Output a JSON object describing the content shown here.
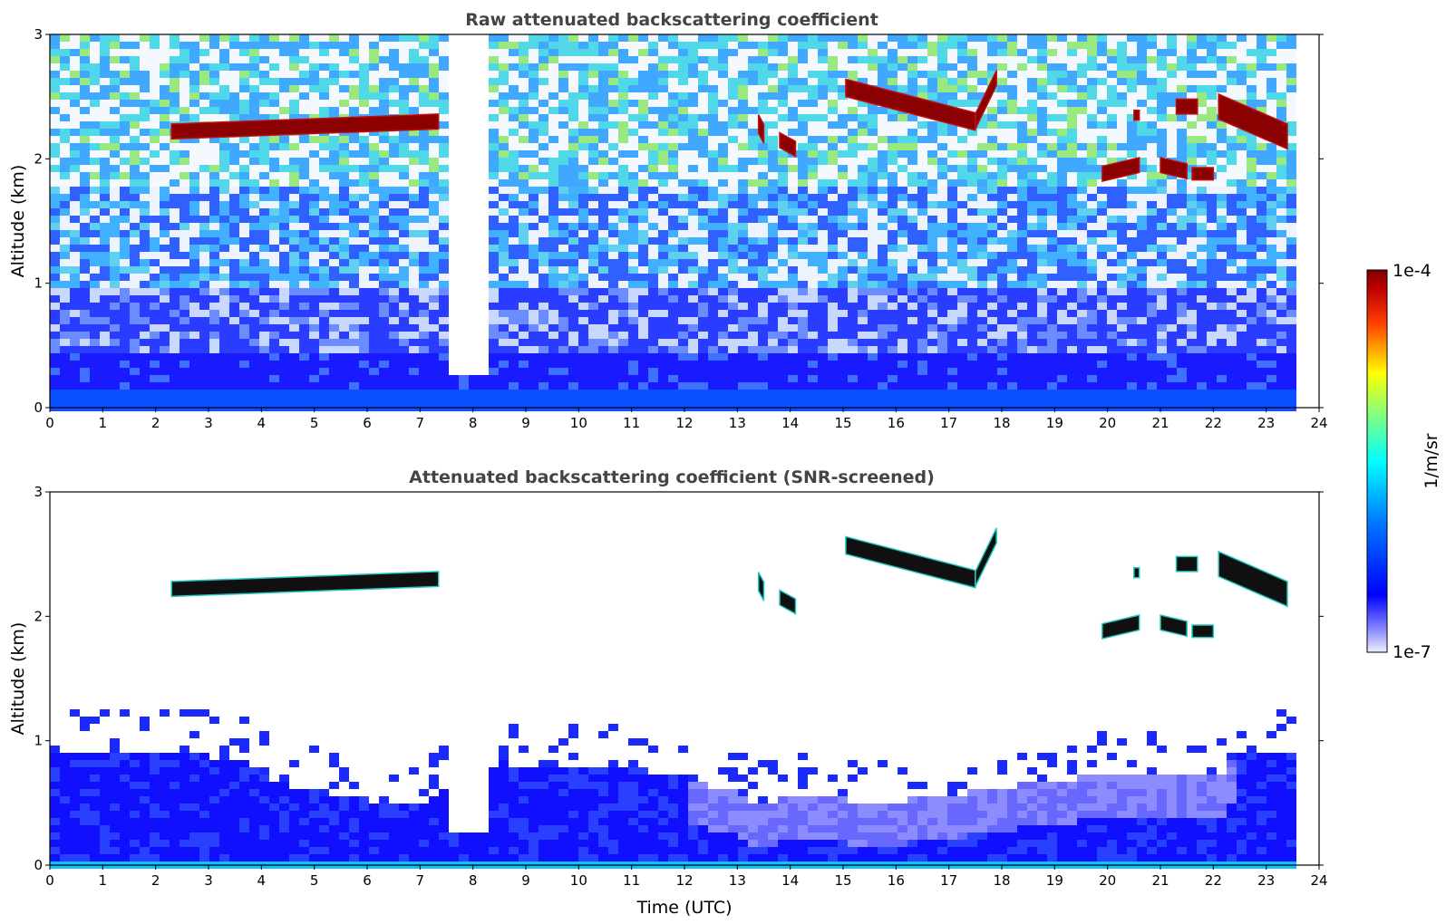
{
  "chart_data": [
    {
      "type": "heatmap",
      "title": "Raw attenuated backscattering coefficient",
      "xlabel": "",
      "ylabel": "Altitude (km)",
      "xlim": [
        0,
        24
      ],
      "ylim": [
        0,
        3
      ],
      "x_ticks": [
        "0",
        "1",
        "2",
        "3",
        "4",
        "5",
        "6",
        "7",
        "8",
        "9",
        "10",
        "11",
        "12",
        "13",
        "14",
        "15",
        "16",
        "17",
        "18",
        "19",
        "20",
        "21",
        "22",
        "23",
        "24"
      ],
      "y_ticks": [
        "0",
        "1",
        "2",
        "3"
      ],
      "data_end_hour": 23.5,
      "noise_level": "high",
      "cloud_layers": [
        {
          "t0": 2.3,
          "t1": 7.35,
          "alt_start": 2.22,
          "alt_end": 2.3,
          "thickness": 0.12
        },
        {
          "t0": 13.4,
          "t1": 13.5,
          "alt_start": 2.28,
          "alt_end": 2.2,
          "thickness": 0.15
        },
        {
          "t0": 13.8,
          "t1": 14.1,
          "alt_start": 2.15,
          "alt_end": 2.08,
          "thickness": 0.12
        },
        {
          "t0": 15.05,
          "t1": 17.5,
          "alt_start": 2.57,
          "alt_end": 2.3,
          "thickness": 0.14
        },
        {
          "t0": 17.5,
          "t1": 17.9,
          "alt_start": 2.3,
          "alt_end": 2.65,
          "thickness": 0.12
        },
        {
          "t0": 19.9,
          "t1": 20.6,
          "alt_start": 1.88,
          "alt_end": 1.95,
          "thickness": 0.12
        },
        {
          "t0": 20.5,
          "t1": 20.6,
          "alt_start": 2.35,
          "alt_end": 2.35,
          "thickness": 0.08
        },
        {
          "t0": 21.0,
          "t1": 21.5,
          "alt_start": 1.95,
          "alt_end": 1.9,
          "thickness": 0.12
        },
        {
          "t0": 21.6,
          "t1": 22.0,
          "alt_start": 1.88,
          "alt_end": 1.88,
          "thickness": 0.1
        },
        {
          "t0": 21.3,
          "t1": 21.7,
          "alt_start": 2.42,
          "alt_end": 2.42,
          "thickness": 0.12
        },
        {
          "t0": 22.1,
          "t1": 23.4,
          "alt_start": 2.42,
          "alt_end": 2.18,
          "thickness": 0.2
        }
      ],
      "gaps": [
        {
          "t0": 7.4,
          "t1": 7.75,
          "min_alt": 0.3
        },
        {
          "t0": 7.85,
          "t1": 8.15,
          "min_alt": 0.28
        }
      ]
    },
    {
      "type": "heatmap",
      "title": "Attenuated backscattering coefficient (SNR-screened)",
      "xlabel": "Time (UTC)",
      "ylabel": "Altitude (km)",
      "xlim": [
        0,
        24
      ],
      "ylim": [
        0,
        3
      ],
      "x_ticks": [
        "0",
        "1",
        "2",
        "3",
        "4",
        "5",
        "6",
        "7",
        "8",
        "9",
        "10",
        "11",
        "12",
        "13",
        "14",
        "15",
        "16",
        "17",
        "18",
        "19",
        "20",
        "21",
        "22",
        "23",
        "24"
      ],
      "y_ticks": [
        "0",
        "1",
        "2",
        "3"
      ],
      "data_end_hour": 23.5,
      "noise_level": "screened",
      "boundary_layer_top_km": [
        [
          0,
          0.95
        ],
        [
          1,
          0.95
        ],
        [
          2,
          0.92
        ],
        [
          3,
          0.9
        ],
        [
          3.7,
          0.85
        ],
        [
          4.2,
          0.7
        ],
        [
          5,
          0.6
        ],
        [
          6,
          0.55
        ],
        [
          7,
          0.55
        ],
        [
          7.5,
          0.7
        ],
        [
          8.5,
          0.85
        ],
        [
          9,
          0.8
        ],
        [
          10,
          0.8
        ],
        [
          11,
          0.8
        ],
        [
          12,
          0.72
        ],
        [
          13,
          0.6
        ],
        [
          13.4,
          0.5
        ],
        [
          14,
          0.62
        ],
        [
          15,
          0.55
        ],
        [
          16,
          0.55
        ],
        [
          17,
          0.6
        ],
        [
          18,
          0.65
        ],
        [
          19,
          0.72
        ],
        [
          20,
          0.75
        ],
        [
          21,
          0.75
        ],
        [
          22,
          0.75
        ],
        [
          22.5,
          0.95
        ],
        [
          23.5,
          0.95
        ]
      ],
      "cloud_layers": [
        {
          "t0": 2.3,
          "t1": 7.35,
          "alt_start": 2.22,
          "alt_end": 2.3,
          "thickness": 0.12
        },
        {
          "t0": 13.4,
          "t1": 13.5,
          "alt_start": 2.28,
          "alt_end": 2.2,
          "thickness": 0.15
        },
        {
          "t0": 13.8,
          "t1": 14.1,
          "alt_start": 2.15,
          "alt_end": 2.08,
          "thickness": 0.12
        },
        {
          "t0": 15.05,
          "t1": 17.5,
          "alt_start": 2.57,
          "alt_end": 2.3,
          "thickness": 0.14
        },
        {
          "t0": 17.5,
          "t1": 17.9,
          "alt_start": 2.3,
          "alt_end": 2.65,
          "thickness": 0.12
        },
        {
          "t0": 19.9,
          "t1": 20.6,
          "alt_start": 1.88,
          "alt_end": 1.95,
          "thickness": 0.12
        },
        {
          "t0": 20.5,
          "t1": 20.6,
          "alt_start": 2.35,
          "alt_end": 2.35,
          "thickness": 0.08
        },
        {
          "t0": 21.0,
          "t1": 21.5,
          "alt_start": 1.95,
          "alt_end": 1.9,
          "thickness": 0.12
        },
        {
          "t0": 21.6,
          "t1": 22.0,
          "alt_start": 1.88,
          "alt_end": 1.88,
          "thickness": 0.1
        },
        {
          "t0": 21.3,
          "t1": 21.7,
          "alt_start": 2.42,
          "alt_end": 2.42,
          "thickness": 0.12
        },
        {
          "t0": 22.1,
          "t1": 23.4,
          "alt_start": 2.42,
          "alt_end": 2.18,
          "thickness": 0.2
        }
      ],
      "gaps": [
        {
          "t0": 7.4,
          "t1": 7.75,
          "min_alt": 0.3
        },
        {
          "t0": 7.85,
          "t1": 8.15,
          "min_alt": 0.28
        }
      ]
    }
  ],
  "colorbar": {
    "label": "1/m/sr",
    "max_label": "1e-4",
    "min_label": "1e-7",
    "scale": "log",
    "colormap": "jet",
    "colors": [
      "#e8e8ff",
      "#0000ff",
      "#00ffff",
      "#ffff00",
      "#ff0000",
      "#800000"
    ]
  }
}
